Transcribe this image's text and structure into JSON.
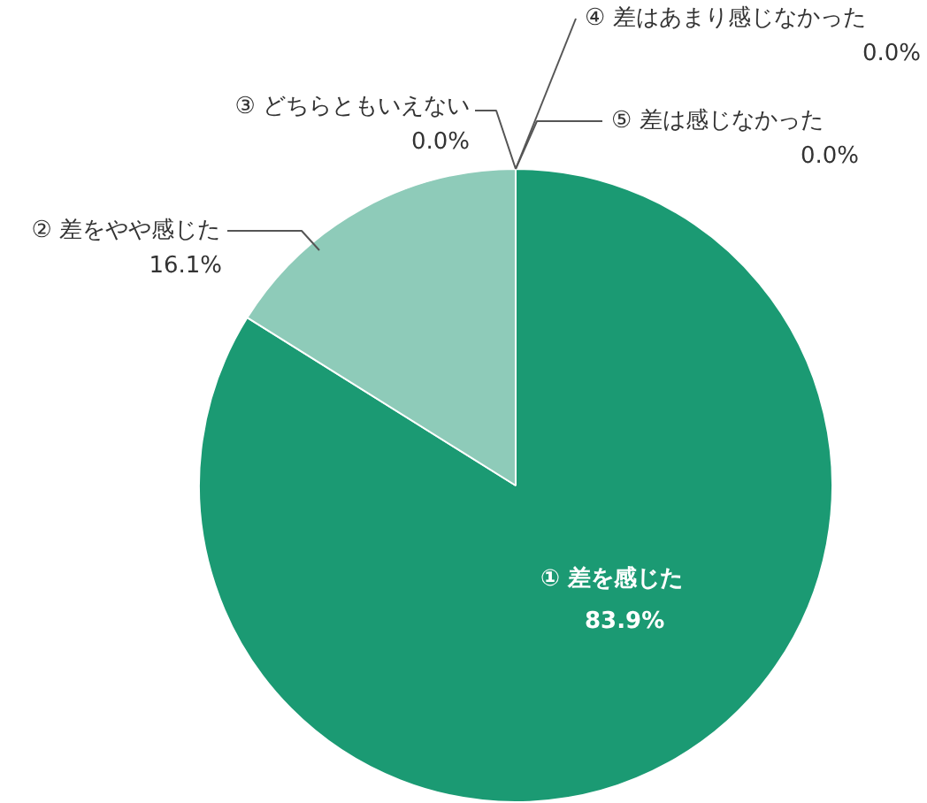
{
  "chart_data": {
    "type": "pie",
    "categories": [
      "① 差を感じた",
      "② 差をやや感じた",
      "③ どちらともいえない",
      "④ 差はあまり感じなかった",
      "⑤ 差は感じなかった"
    ],
    "values": [
      83.9,
      16.1,
      0.0,
      0.0,
      0.0
    ],
    "value_labels": [
      "83.9%",
      "16.1%",
      "0.0%",
      "0.0%",
      "0.0%"
    ],
    "colors": [
      "#1b9a73",
      "#8ecbb9",
      "#c3e3d8",
      "#dcefe8",
      "#eef7f4"
    ],
    "legend": false
  }
}
